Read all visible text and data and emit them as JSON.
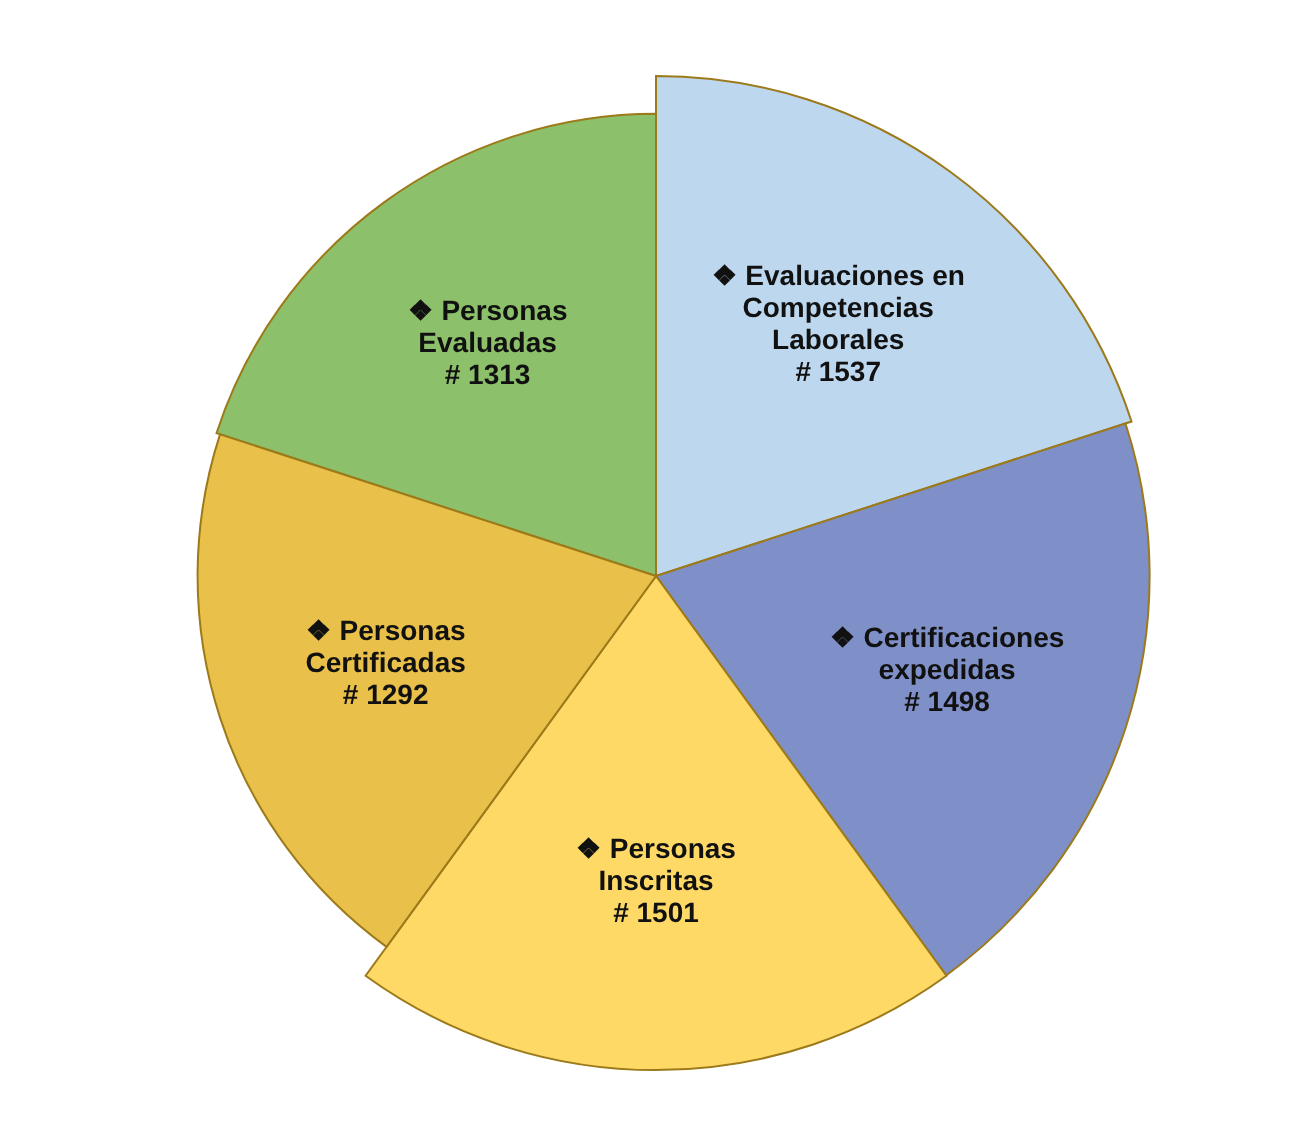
{
  "chart_data": {
    "type": "other",
    "categories": [
      "❖ Personas Evaluadas",
      "❖ Evaluaciones en Competencias Laborales",
      "❖ Certificaciones expedidas",
      "❖ Personas Inscritas",
      "❖ Personas Certificadas"
    ],
    "values": [
      1313,
      1537,
      1498,
      1501,
      1292
    ],
    "value_labels": [
      "# 1313",
      "# 1537",
      "# 1498",
      "# 1501",
      "# 1292"
    ],
    "colors": [
      "#8cc06a",
      "#bdd7ee",
      "#7f8fc8",
      "#ffd966",
      "#e8c04a"
    ]
  }
}
